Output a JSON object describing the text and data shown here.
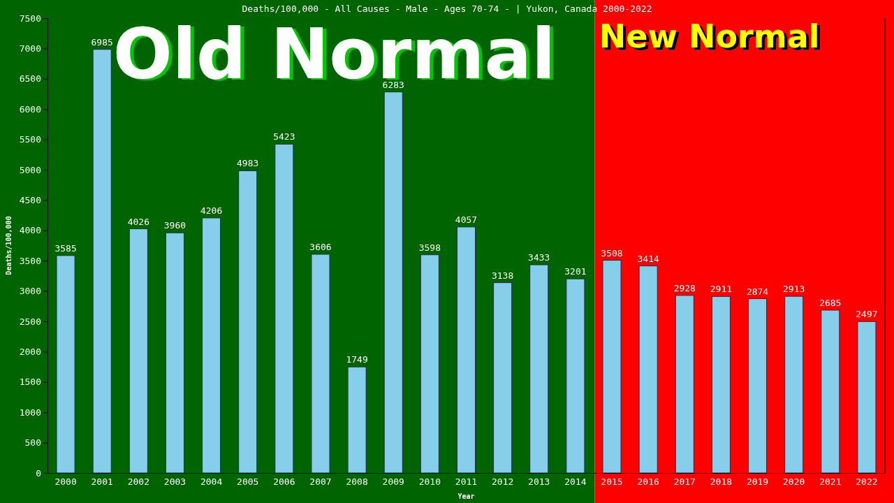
{
  "chart_data": {
    "type": "bar",
    "title": "Deaths/100,000 - All Causes - Male - Ages 70-74 -  | Yukon, Canada 2000-2022",
    "xlabel": "Year",
    "ylabel": "Deaths/100,000",
    "categories": [
      "2000",
      "2001",
      "2002",
      "2003",
      "2004",
      "2005",
      "2006",
      "2007",
      "2008",
      "2009",
      "2010",
      "2011",
      "2012",
      "2013",
      "2014",
      "2015",
      "2016",
      "2017",
      "2018",
      "2019",
      "2020",
      "2021",
      "2022"
    ],
    "values": [
      3585,
      6985,
      4026,
      3960,
      4206,
      4983,
      5423,
      3606,
      1749,
      6283,
      3598,
      4057,
      3138,
      3433,
      3201,
      3508,
      3414,
      2928,
      2911,
      2874,
      2913,
      2685,
      2497
    ],
    "color": "#87ceeb",
    "data_labels": true,
    "ylim": [
      0,
      7500
    ],
    "yticks": [
      0,
      500,
      1000,
      1500,
      2000,
      2500,
      3000,
      3500,
      4000,
      4500,
      5000,
      5500,
      6000,
      6500,
      7000,
      7500
    ],
    "bands": [
      {
        "axis": "x",
        "from": "2000",
        "to": "2014",
        "label": "Old Normal",
        "color": "#006400"
      },
      {
        "axis": "x",
        "from": "2015",
        "to": "2022",
        "label": "New Normal",
        "color": "#ff0000"
      }
    ]
  }
}
